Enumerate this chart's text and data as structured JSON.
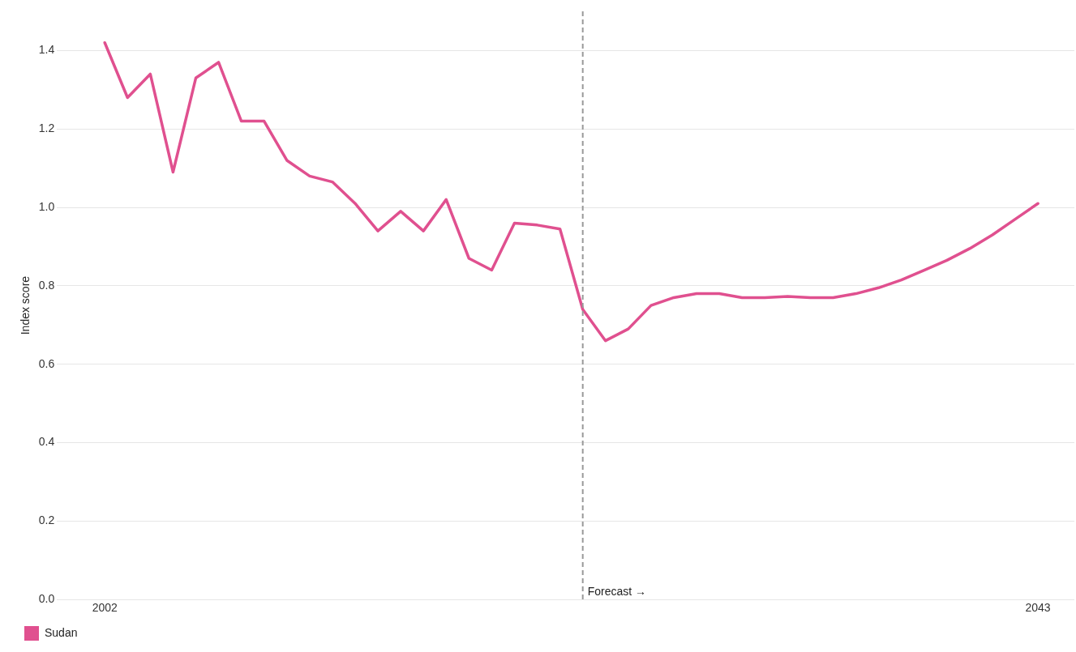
{
  "chart_data": {
    "type": "line",
    "ylabel": "Index score",
    "x": [
      2002,
      2003,
      2004,
      2005,
      2006,
      2007,
      2008,
      2009,
      2010,
      2011,
      2012,
      2013,
      2014,
      2015,
      2016,
      2017,
      2018,
      2019,
      2020,
      2021,
      2022,
      2023,
      2024,
      2025,
      2026,
      2027,
      2028,
      2029,
      2030,
      2031,
      2032,
      2033,
      2034,
      2035,
      2036,
      2037,
      2038,
      2039,
      2040,
      2041,
      2042,
      2043
    ],
    "series": [
      {
        "name": "Sudan",
        "color": "#e0508f",
        "values": [
          1.42,
          1.28,
          1.34,
          1.09,
          1.33,
          1.37,
          1.22,
          1.22,
          1.12,
          1.08,
          1.065,
          1.01,
          0.94,
          0.99,
          0.94,
          1.02,
          0.87,
          0.84,
          0.96,
          0.955,
          0.945,
          0.74,
          0.66,
          0.69,
          0.75,
          0.77,
          0.78,
          0.78,
          0.77,
          0.77,
          0.773,
          0.77,
          0.77,
          0.78,
          0.795,
          0.815,
          0.84,
          0.865,
          0.895,
          0.93,
          0.97,
          1.01
        ]
      }
    ],
    "xlim": [
      1999.9,
      2044.6
    ],
    "xticks": [
      2002,
      2043
    ],
    "ylim": [
      0,
      1.5
    ],
    "yticks": [
      {
        "value": 0,
        "label": "0.0"
      },
      0.2,
      0.4,
      0.6,
      0.8,
      {
        "value": 1,
        "label": "1.0"
      },
      1.2,
      1.4
    ],
    "ref_lines": [
      {
        "axis": "x",
        "value": 2023,
        "label": "Forecast →",
        "color": "#999999",
        "line_style": "dashed"
      }
    ],
    "grid": "y",
    "legend": "bottom left",
    "marker": "none",
    "line_style": "solid"
  }
}
